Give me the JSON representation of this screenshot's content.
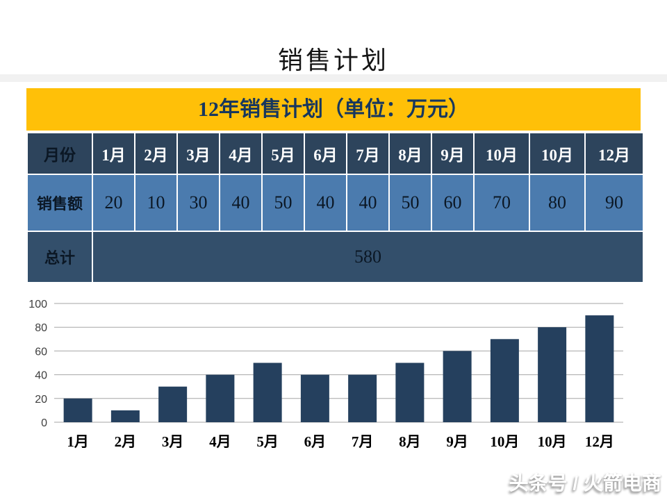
{
  "title": "销售计划",
  "banner": {
    "text": "12年销售计划（单位：万元）",
    "bg_color": "#FFC008",
    "text_color": "#17375E"
  },
  "table": {
    "month_header_label": "月份",
    "months": [
      "1月",
      "2月",
      "3月",
      "4月",
      "5月",
      "6月",
      "7月",
      "8月",
      "9月",
      "10月",
      "10月",
      "12月"
    ],
    "sales_label": "销售额",
    "sales_values": [
      20,
      10,
      30,
      40,
      50,
      40,
      40,
      50,
      60,
      70,
      80,
      90
    ],
    "total_label": "总计",
    "total_value": 580,
    "colors": {
      "header_bg": "#2D445C",
      "sales_bg": "#4B7BAE",
      "total_bg": "#334F6B",
      "label_text": "#0B1724",
      "month_text": "#FFFFFF"
    }
  },
  "chart_data": {
    "type": "bar",
    "categories": [
      "1月",
      "2月",
      "3月",
      "4月",
      "5月",
      "6月",
      "7月",
      "8月",
      "9月",
      "10月",
      "10月",
      "12月"
    ],
    "values": [
      20,
      10,
      30,
      40,
      50,
      40,
      40,
      50,
      60,
      70,
      80,
      90
    ],
    "title": "",
    "xlabel": "",
    "ylabel": "",
    "ylim": [
      0,
      100
    ],
    "yticks": [
      0,
      20,
      40,
      60,
      80,
      100
    ],
    "grid": true,
    "legend_position": "none",
    "bar_color": "#25405E",
    "gridline_color": "#A6A6A6",
    "tick_label_color": "#3F3F3F"
  },
  "watermark": "头条号 / 火箭电商"
}
